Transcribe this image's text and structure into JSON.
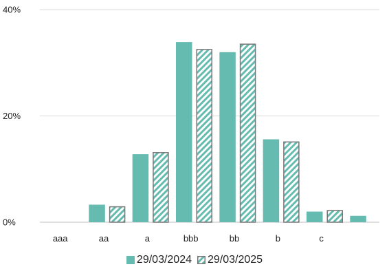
{
  "chart_data": {
    "type": "bar",
    "categories": [
      "aaa",
      "aa",
      "a",
      "bbb",
      "bb",
      "b",
      "c",
      ""
    ],
    "series": [
      {
        "name": "29/03/2024",
        "values": [
          0,
          3.3,
          12.8,
          33.9,
          32.0,
          15.6,
          2.0,
          1.2
        ],
        "pattern": "solid"
      },
      {
        "name": "29/03/2025",
        "values": [
          0,
          3.0,
          13.2,
          32.6,
          33.6,
          15.2,
          2.3,
          0
        ],
        "pattern": "hatched"
      }
    ],
    "yticks": [
      "0%",
      "20%",
      "40%"
    ],
    "ylim": [
      0,
      40
    ],
    "title": "",
    "xlabel": "",
    "ylabel": "",
    "grid": true,
    "legend_position": "bottom",
    "colors": {
      "fill": "#66bbb0",
      "grid": "#d9d9d9",
      "text": "#222222"
    }
  }
}
